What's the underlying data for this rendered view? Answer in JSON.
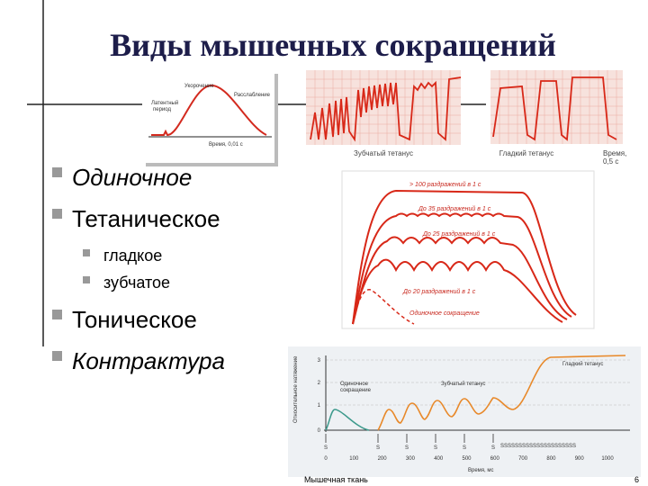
{
  "title": "Виды мышечных сокращений",
  "bullets": [
    {
      "text": "Одиночное"
    },
    {
      "text": "Тетаническое",
      "sub": [
        "гладкое",
        "зубчатое"
      ]
    },
    {
      "text": "Тоническое"
    },
    {
      "text": "Контрактура"
    }
  ],
  "figures": {
    "single": {
      "labels": [
        "Укорочение",
        "Расслабление",
        "Латентный",
        "период",
        "Время, 0,01 с"
      ]
    },
    "serrated": {
      "caption": "Зубчатый тетанус"
    },
    "smooth": {
      "caption": "Гладкий тетанус",
      "time": [
        "Время,",
        "0,5 с"
      ]
    },
    "frequency": {
      "labels": [
        "> 100 раздражений в 1 с",
        "До 35 раздражений в 1 с",
        "До 25 раздражений в 1 с",
        "До 20 раздражений в 1 с",
        "Одиночное сокращение"
      ]
    },
    "tension": {
      "y_label": "Относительное натяжение",
      "yticks": [
        "0",
        "1",
        "2",
        "3"
      ],
      "labels": [
        "Одиночное",
        "сокращение",
        "Зубчатый тетанус",
        "Гладкий тетанус"
      ],
      "stimulus": "S",
      "stimulus_train": "SSSSSSSSSSSSSSSSSSSSS",
      "xticks": [
        "0",
        "100",
        "200",
        "300",
        "400",
        "500",
        "600",
        "700",
        "800",
        "900",
        "1000"
      ],
      "x_label": "Время, мс"
    }
  },
  "footer": {
    "text": "Мышечная ткань",
    "page": "6"
  }
}
